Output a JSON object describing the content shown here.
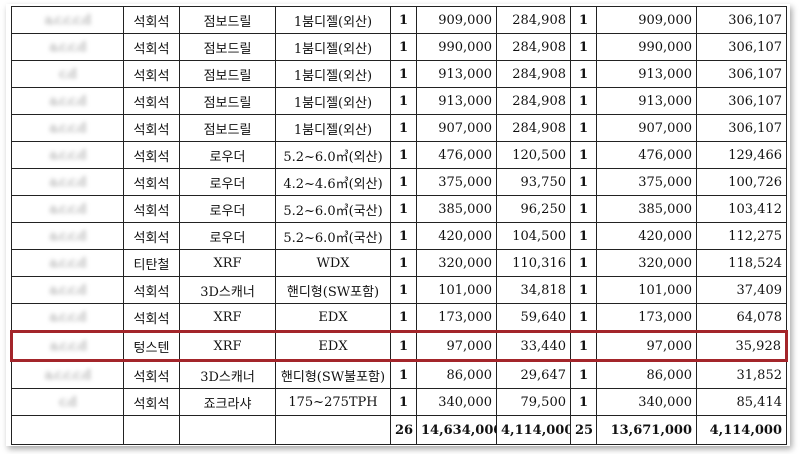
{
  "rows": [
    {
      "id": "a.c.c.c.d",
      "material": "석회석",
      "equipment": "점보드릴",
      "spec": "1붐디젤(외산)",
      "qty1": "1",
      "price1": "909,000",
      "value1": "284,908",
      "qty2": "1",
      "price2": "909,000",
      "value2": "306,107"
    },
    {
      "id": "a.c.c.d",
      "material": "석회석",
      "equipment": "점보드릴",
      "spec": "1붐디젤(외산)",
      "qty1": "1",
      "price1": "990,000",
      "value1": "284,908",
      "qty2": "1",
      "price2": "990,000",
      "value2": "306,107"
    },
    {
      "id": "c.d",
      "material": "석회석",
      "equipment": "점보드릴",
      "spec": "1붐디젤(외산)",
      "qty1": "1",
      "price1": "913,000",
      "value1": "284,908",
      "qty2": "1",
      "price2": "913,000",
      "value2": "306,107"
    },
    {
      "id": "a.c.c.d",
      "material": "석회석",
      "equipment": "점보드릴",
      "spec": "1붐디젤(외산)",
      "qty1": "1",
      "price1": "913,000",
      "value1": "284,908",
      "qty2": "1",
      "price2": "913,000",
      "value2": "306,107"
    },
    {
      "id": "a.c.c.d",
      "material": "석회석",
      "equipment": "점보드릴",
      "spec": "1붐디젤(외산)",
      "qty1": "1",
      "price1": "907,000",
      "value1": "284,908",
      "qty2": "1",
      "price2": "907,000",
      "value2": "306,107"
    },
    {
      "id": "a.c.c.d",
      "material": "석회석",
      "equipment": "로우더",
      "spec": "5.2~6.0㎥(외산)",
      "qty1": "1",
      "price1": "476,000",
      "value1": "120,500",
      "qty2": "1",
      "price2": "476,000",
      "value2": "129,466"
    },
    {
      "id": "a.c.c.d",
      "material": "석회석",
      "equipment": "로우더",
      "spec": "4.2~4.6㎥(외산)",
      "qty1": "1",
      "price1": "375,000",
      "value1": "93,750",
      "qty2": "1",
      "price2": "375,000",
      "value2": "100,726"
    },
    {
      "id": "a.c.c.d",
      "material": "석회석",
      "equipment": "로우더",
      "spec": "5.2~6.0㎥(국산)",
      "qty1": "1",
      "price1": "385,000",
      "value1": "96,250",
      "qty2": "1",
      "price2": "385,000",
      "value2": "103,412"
    },
    {
      "id": "a.c.c.d",
      "material": "석회석",
      "equipment": "로우더",
      "spec": "5.2~6.0㎥(국산)",
      "qty1": "1",
      "price1": "420,000",
      "value1": "104,500",
      "qty2": "1",
      "price2": "420,000",
      "value2": "112,275"
    },
    {
      "id": "a.c.c.d",
      "material": "티탄철",
      "equipment": "XRF",
      "spec": "WDX",
      "qty1": "1",
      "price1": "320,000",
      "value1": "110,316",
      "qty2": "1",
      "price2": "320,000",
      "value2": "118,524"
    },
    {
      "id": "a.c.c.d",
      "material": "석회석",
      "equipment": "3D스캐너",
      "spec": "핸디형(SW포함)",
      "qty1": "1",
      "price1": "101,000",
      "value1": "34,818",
      "qty2": "1",
      "price2": "101,000",
      "value2": "37,409"
    },
    {
      "id": "a.c.c.d",
      "material": "석회석",
      "equipment": "XRF",
      "spec": "EDX",
      "qty1": "1",
      "price1": "173,000",
      "value1": "59,640",
      "qty2": "1",
      "price2": "173,000",
      "value2": "64,078"
    },
    {
      "id": "a.c.c.d",
      "material": "텅스텐",
      "equipment": "XRF",
      "spec": "EDX",
      "qty1": "1",
      "price1": "97,000",
      "value1": "33,440",
      "qty2": "1",
      "price2": "97,000",
      "value2": "35,928"
    },
    {
      "id": "a.c.c.c.d",
      "material": "석회석",
      "equipment": "3D스캐너",
      "spec": "핸디형(SW불포함)",
      "qty1": "1",
      "price1": "86,000",
      "value1": "29,647",
      "qty2": "1",
      "price2": "86,000",
      "value2": "31,852"
    },
    {
      "id": "c.d",
      "material": "석회석",
      "equipment": "죠크라샤",
      "spec": "175~275TPH",
      "qty1": "1",
      "price1": "340,000",
      "value1": "79,500",
      "qty2": "1",
      "price2": "340,000",
      "value2": "85,414"
    }
  ],
  "highlight_color": "#a3252a",
  "total": {
    "qty1": "26",
    "price1": "14,634,000",
    "value1": "4,114,000",
    "qty2": "25",
    "price2": "13,671,000",
    "value2": "4,114,000"
  }
}
